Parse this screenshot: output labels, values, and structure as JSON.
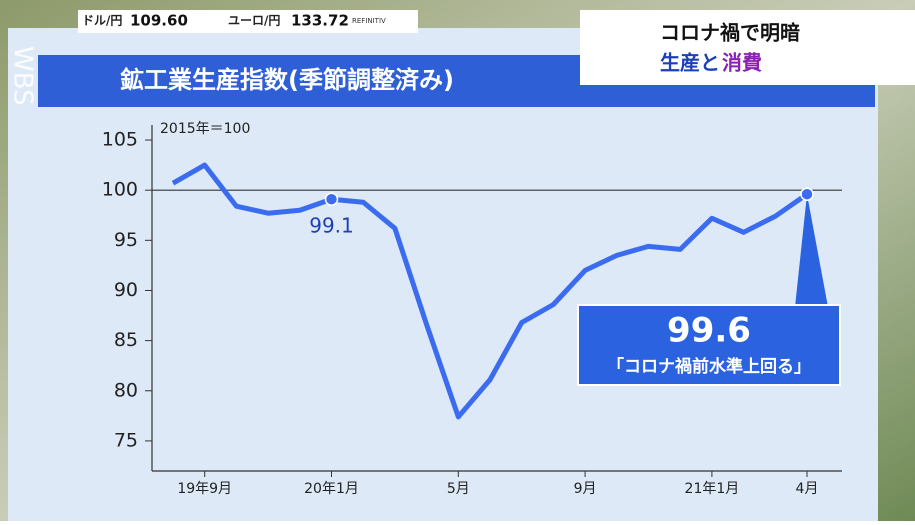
{
  "ticker": {
    "items": [
      {
        "label": "ドル/円",
        "value": "109.60"
      },
      {
        "label": "ユーロ/円",
        "value": "133.72"
      }
    ],
    "source": "REFINITIV"
  },
  "logo": "WBS",
  "headline": {
    "line1": "コロナ禍で明暗",
    "line2a": "生産と",
    "line2b": "消費"
  },
  "chart_data": {
    "type": "line",
    "title": "鉱工業生産指数(季節調整済み)",
    "subtitle": "2015年＝100",
    "categories": [
      null,
      "19年9月",
      null,
      null,
      null,
      "20年1月",
      null,
      null,
      null,
      "5月",
      null,
      null,
      null,
      "9月",
      null,
      null,
      null,
      "21年1月",
      null,
      null,
      "4月"
    ],
    "series": [
      {
        "name": "鉱工業生産指数",
        "color": "#3b6cf0",
        "values": [
          100.7,
          102.5,
          98.4,
          97.7,
          98.0,
          99.1,
          98.8,
          96.2,
          86.6,
          77.4,
          81.1,
          86.8,
          88.6,
          92.0,
          93.5,
          94.4,
          94.1,
          97.2,
          95.8,
          97.4,
          99.6
        ],
        "value_labels": [
          null,
          null,
          null,
          null,
          null,
          "99.1",
          null,
          null,
          null,
          null,
          null,
          null,
          null,
          null,
          null,
          null,
          null,
          null,
          null,
          null,
          "99.6"
        ]
      }
    ],
    "ylim": [
      72,
      106
    ],
    "yticks": [
      75,
      80,
      85,
      90,
      95,
      100,
      105
    ],
    "reference_line": 100,
    "annotation": "「コロナ禍前水準上回る」"
  }
}
